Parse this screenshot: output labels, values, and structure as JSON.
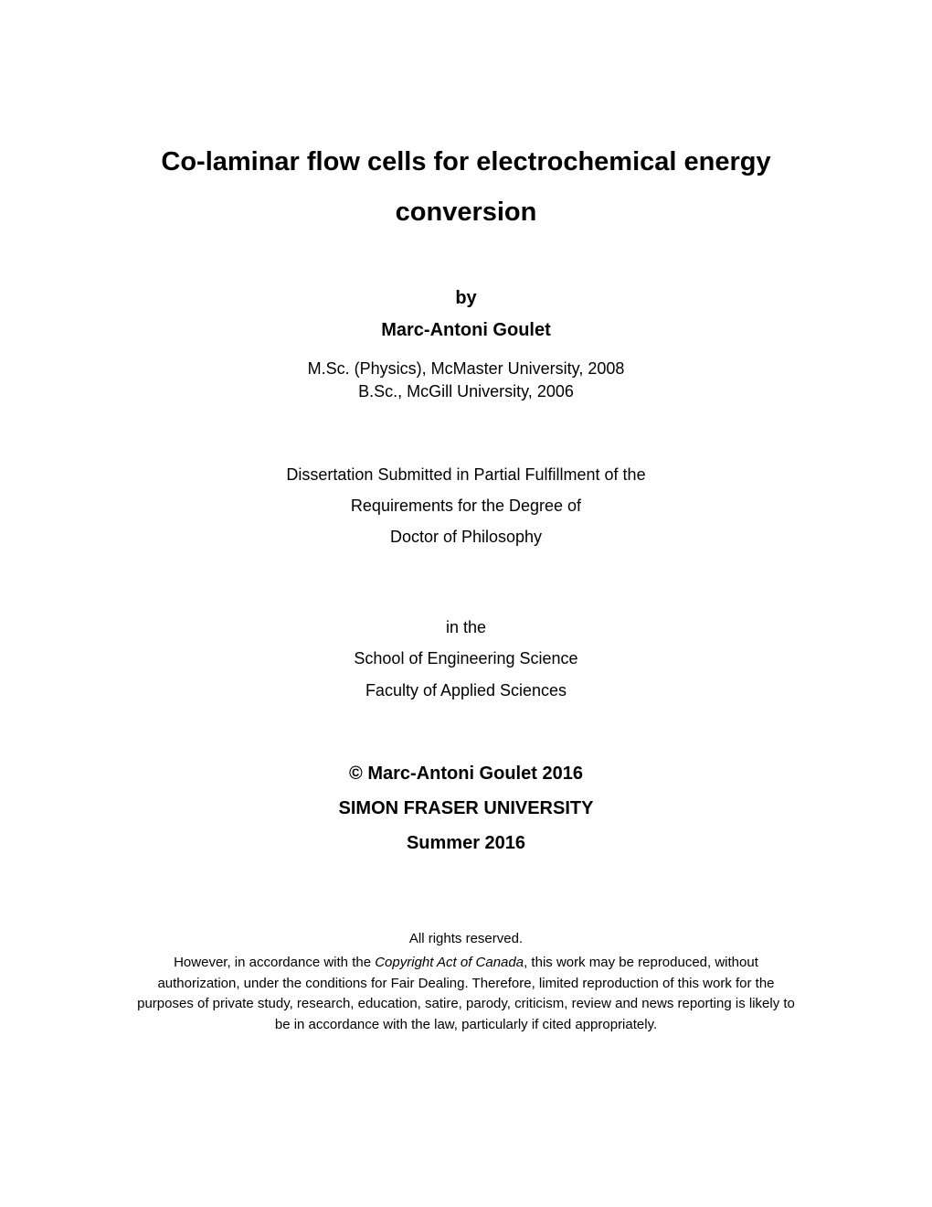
{
  "title": "Co-laminar flow cells for electrochemical energy conversion",
  "by": "by",
  "author": "Marc-Antoni Goulet",
  "credentials": {
    "line1": "M.Sc. (Physics), McMaster University, 2008",
    "line2": "B.Sc., McGill University, 2006"
  },
  "submission": {
    "line1": "Dissertation Submitted in Partial Fulfillment of the",
    "line2": "Requirements for the Degree of",
    "line3": "Doctor of Philosophy"
  },
  "school": {
    "line1": "in the",
    "line2": "School of Engineering Science",
    "line3": "Faculty of Applied Sciences"
  },
  "copyright": {
    "line1": "© Marc-Antoni Goulet 2016",
    "line2": "SIMON FRASER UNIVERSITY",
    "line3": "Summer 2016"
  },
  "rights": {
    "reserved": "All rights reserved.",
    "text_before_italic": "However, in accordance with the ",
    "italic_text": "Copyright Act of Canada",
    "text_after_italic": ", this work may be reproduced, without authorization, under the conditions for Fair Dealing. Therefore, limited reproduction of this work for the purposes of private study, research, education, satire, parody, criticism, review and news reporting is likely to be in accordance with the law, particularly if cited appropriately."
  },
  "colors": {
    "background": "#ffffff",
    "text": "#000000"
  },
  "typography": {
    "title_fontsize": 29,
    "heading_fontsize": 20,
    "body_fontsize": 18,
    "rights_fontsize": 15,
    "font_family": "Arial"
  }
}
